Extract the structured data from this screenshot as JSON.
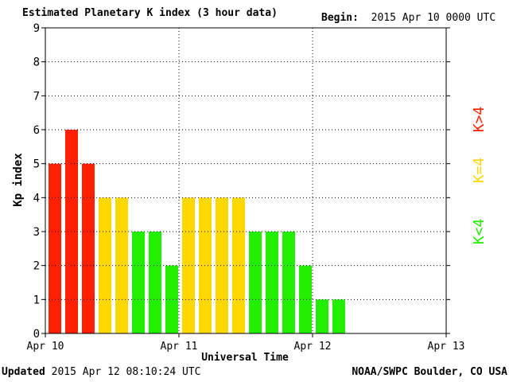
{
  "header": {
    "title": "Estimated Planetary K index (3 hour data)",
    "begin_label": "Begin:",
    "begin_value": "2015 Apr 10 0000 UTC"
  },
  "footer": {
    "updated_label": "Updated",
    "updated_value": "2015 Apr 12 08:10:24 UTC",
    "credit": "NOAA/SWPC Boulder, CO USA"
  },
  "legend": {
    "high": "K>4",
    "mid": "K=4",
    "low": "K<4"
  },
  "colors": {
    "high": "#ff2000",
    "mid": "#ffd800",
    "low": "#22ee00",
    "grid": "#000000"
  },
  "chart_data": {
    "type": "bar",
    "title": "Estimated Planetary K index (3 hour data)",
    "xlabel": "Universal Time",
    "ylabel": "Kp index",
    "ylim": [
      0,
      9
    ],
    "yticks": [
      "0",
      "1",
      "2",
      "3",
      "4",
      "5",
      "6",
      "7",
      "8",
      "9"
    ],
    "xticks": [
      "Apr 10",
      "Apr 11",
      "Apr 12",
      "Apr 13"
    ],
    "interval_hours": 3,
    "categories": [
      "Apr 10 00",
      "Apr 10 03",
      "Apr 10 06",
      "Apr 10 09",
      "Apr 10 12",
      "Apr 10 15",
      "Apr 10 18",
      "Apr 10 21",
      "Apr 11 00",
      "Apr 11 03",
      "Apr 11 06",
      "Apr 11 09",
      "Apr 11 12",
      "Apr 11 15",
      "Apr 11 18",
      "Apr 11 21",
      "Apr 12 00",
      "Apr 12 03"
    ],
    "values": [
      5,
      6,
      5,
      4,
      4,
      3,
      3,
      2,
      4,
      4,
      4,
      4,
      3,
      3,
      3,
      2,
      1,
      1
    ],
    "grid": true
  }
}
